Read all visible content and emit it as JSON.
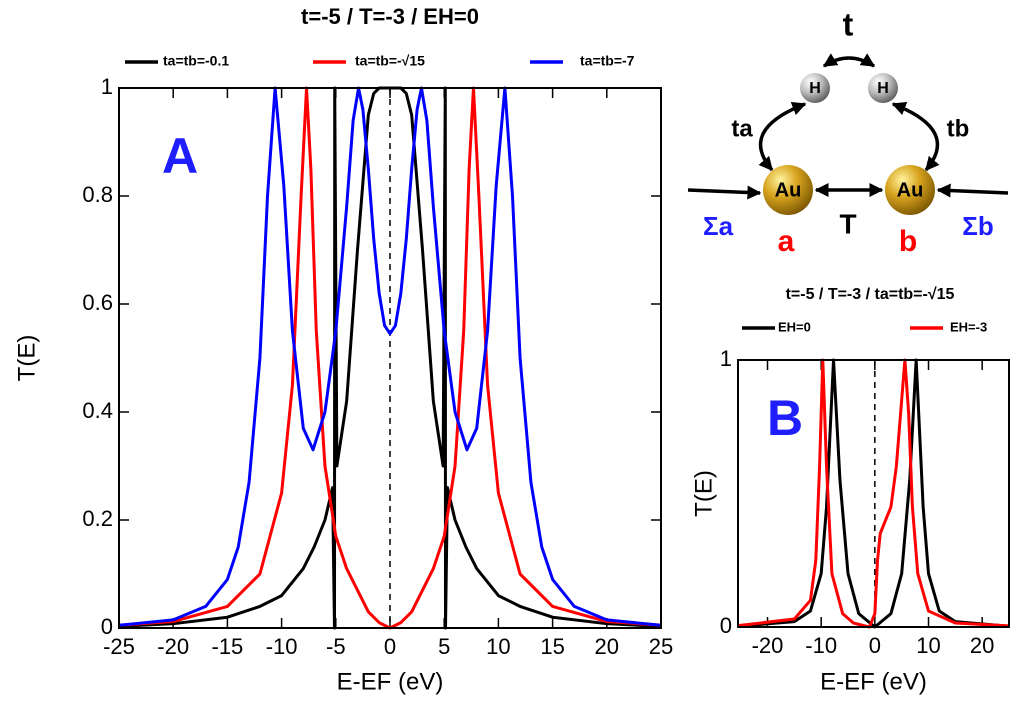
{
  "chart_data": [
    {
      "type": "line",
      "title": "t=-5 / T=-3 / EH=0",
      "xlabel": "E-EF (eV)",
      "ylabel": "T(E)",
      "annotation": "A",
      "annotation_color": "#1e1eff",
      "xlim": [
        -25,
        25
      ],
      "ylim": [
        0,
        1
      ],
      "xticks": [
        -25,
        -20,
        -15,
        -10,
        -5,
        0,
        5,
        10,
        15,
        20,
        25
      ],
      "yticks": [
        0,
        0.2,
        0.4,
        0.6,
        0.8,
        1
      ],
      "vline_x": 0,
      "series": [
        {
          "name": "ta=tb=-0.1",
          "color": "#000000",
          "x": [
            -25,
            -20,
            -15,
            -12,
            -10,
            -8,
            -7,
            -6,
            -5.3,
            -5.12,
            -5.1,
            -4.9,
            -4,
            -3,
            -2,
            -1.5,
            -1,
            0,
            1,
            1.5,
            2,
            3,
            4,
            4.9,
            5.1,
            5.12,
            5.3,
            6,
            7,
            8,
            10,
            12,
            15,
            20,
            25
          ],
          "values": [
            0.003,
            0.008,
            0.02,
            0.04,
            0.06,
            0.11,
            0.15,
            0.2,
            0.26,
            0,
            1,
            0.3,
            0.42,
            0.7,
            0.95,
            0.99,
            1,
            1,
            1,
            0.99,
            0.95,
            0.7,
            0.42,
            0.3,
            1,
            0,
            0.26,
            0.2,
            0.15,
            0.11,
            0.06,
            0.04,
            0.02,
            0.008,
            0.003
          ]
        },
        {
          "name": "ta=tb=-√15",
          "color": "#ff0000",
          "x": [
            -25,
            -20,
            -15,
            -12,
            -10,
            -9,
            -8.2,
            -7.7,
            -7.3,
            -6.8,
            -6,
            -5,
            -4,
            -3,
            -2,
            -1,
            0,
            1,
            2,
            3,
            4,
            5,
            6,
            6.8,
            7.3,
            7.7,
            8.2,
            9,
            10,
            12,
            15,
            20,
            25
          ],
          "values": [
            0.005,
            0.012,
            0.04,
            0.1,
            0.25,
            0.45,
            0.8,
            1,
            0.85,
            0.55,
            0.3,
            0.17,
            0.11,
            0.07,
            0.03,
            0.01,
            0,
            0.01,
            0.03,
            0.07,
            0.11,
            0.17,
            0.3,
            0.55,
            0.85,
            1,
            0.8,
            0.45,
            0.25,
            0.1,
            0.04,
            0.012,
            0.005
          ]
        },
        {
          "name": "ta=tb=-7",
          "color": "#0000ff",
          "x": [
            -25,
            -20,
            -17,
            -15,
            -14,
            -13,
            -12,
            -11.3,
            -10.6,
            -9.8,
            -9,
            -8,
            -7.1,
            -6,
            -5,
            -4,
            -3.4,
            -2.9,
            -2.5,
            -2,
            -1.5,
            -1,
            -0.5,
            0,
            0.5,
            1,
            1.5,
            2,
            2.5,
            2.9,
            3.4,
            4,
            5,
            6,
            7.1,
            8,
            9,
            9.8,
            10.6,
            11.3,
            12,
            13,
            14,
            15,
            17,
            20,
            25
          ],
          "values": [
            0.005,
            0.015,
            0.04,
            0.09,
            0.15,
            0.27,
            0.5,
            0.8,
            1,
            0.82,
            0.55,
            0.37,
            0.33,
            0.4,
            0.55,
            0.78,
            0.94,
            1,
            0.96,
            0.85,
            0.72,
            0.62,
            0.56,
            0.545,
            0.56,
            0.62,
            0.72,
            0.85,
            0.96,
            1,
            0.94,
            0.78,
            0.55,
            0.4,
            0.33,
            0.37,
            0.55,
            0.82,
            1,
            0.8,
            0.5,
            0.27,
            0.15,
            0.09,
            0.04,
            0.015,
            0.005
          ]
        }
      ]
    },
    {
      "type": "line",
      "title": "t=-5 / T=-3 / ta=tb=-√15",
      "xlabel": "E-EF (eV)",
      "ylabel": "T(E)",
      "annotation": "B",
      "annotation_color": "#1e1eff",
      "xlim": [
        -25.5,
        25
      ],
      "ylim": [
        0,
        1
      ],
      "xticks": [
        -20,
        -10,
        0,
        10,
        20
      ],
      "yticks": [
        0,
        1
      ],
      "vline_x": 0,
      "series": [
        {
          "name": "EH=0",
          "color": "#000000",
          "x": [
            -25.5,
            -15,
            -12,
            -10,
            -9,
            -7.7,
            -6.5,
            -5,
            -3,
            0,
            3,
            5,
            6.5,
            7.7,
            9,
            10,
            12,
            15,
            25
          ],
          "values": [
            0.003,
            0.02,
            0.06,
            0.2,
            0.45,
            1,
            0.55,
            0.2,
            0.05,
            0,
            0.05,
            0.2,
            0.55,
            1,
            0.45,
            0.2,
            0.06,
            0.02,
            0.003
          ]
        },
        {
          "name": "EH=-3",
          "color": "#ff0000",
          "x": [
            -25.5,
            -15,
            -12,
            -11,
            -10.3,
            -9.7,
            -9,
            -8,
            -6,
            -4,
            -2,
            -1,
            0,
            0.5,
            1,
            2,
            3,
            4,
            5,
            5.6,
            6.3,
            7,
            8,
            10,
            15,
            25
          ],
          "values": [
            0.005,
            0.03,
            0.1,
            0.25,
            0.6,
            1,
            0.6,
            0.2,
            0.05,
            0.015,
            0.005,
            0,
            0.05,
            0.25,
            0.35,
            0.4,
            0.45,
            0.6,
            0.85,
            1,
            0.8,
            0.45,
            0.2,
            0.06,
            0.015,
            0.004
          ]
        }
      ]
    }
  ],
  "diagram": {
    "hopping_top": "t",
    "h_left": "H",
    "h_right": "H",
    "t_a": "ta",
    "t_b": "tb",
    "au_left": "Au",
    "au_right": "Au",
    "sigma_a": "Σa",
    "sigma_b": "Σb",
    "site_a": "a",
    "coupling": "T",
    "site_b": "b"
  }
}
